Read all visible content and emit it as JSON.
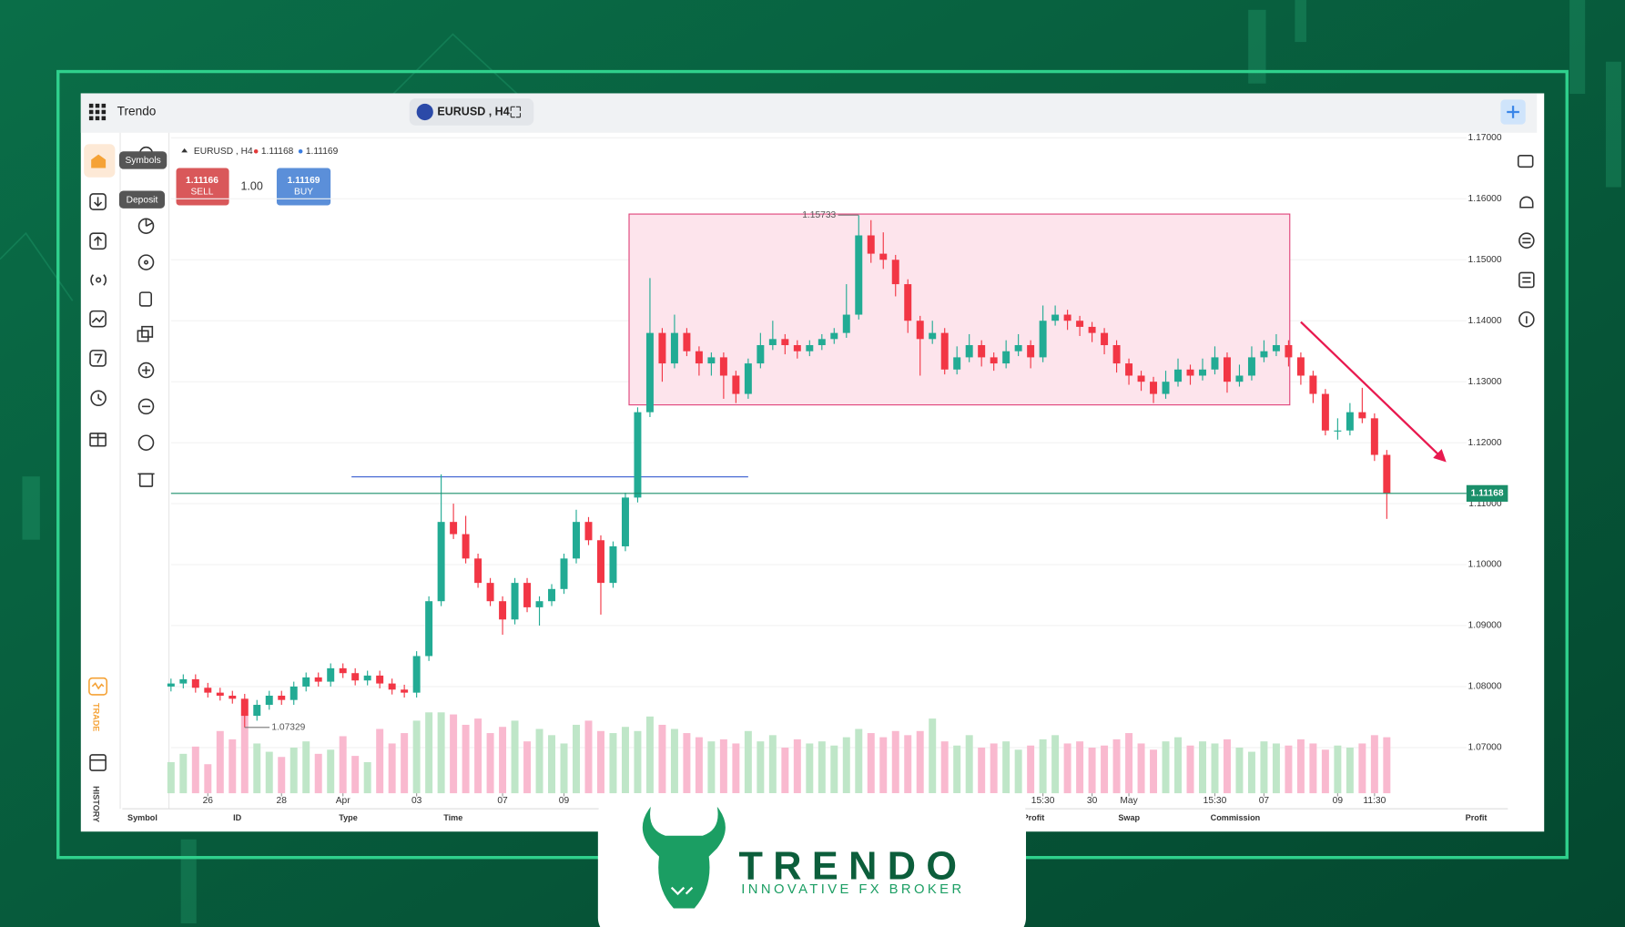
{
  "app": {
    "brand": "Trendo",
    "symbol": "EURUSD , H4"
  },
  "sidebar": {
    "tooltips": [
      "Symbols",
      "Deposit"
    ],
    "trade": "TRADE",
    "history": "HISTORY"
  },
  "chart_header": {
    "symbol": "EURUSD , H4",
    "bid": "1.11168",
    "ask": "1.11169"
  },
  "order": {
    "sell_price": "1.11166",
    "sell": "SELL",
    "lot": "1.00",
    "buy_price": "1.11169",
    "buy": "BUY"
  },
  "table_headers": [
    "Symbol",
    "ID",
    "Type",
    "Time",
    "Profit",
    "Swap",
    "Commission",
    "Profit"
  ],
  "logo": {
    "name": "TRENDO",
    "tagline": "INNOVATIVE FX BROKER"
  },
  "chart_data": {
    "type": "candlestick",
    "up_color": "#22ab94",
    "down_color": "#f23645",
    "volume_up_color": "#bfe6c8",
    "volume_down_color": "#f9b9cf",
    "ylim": [
      1.0625,
      1.1705
    ],
    "yticks": [
      {
        "value": 1.07,
        "label": "1.07000"
      },
      {
        "value": 1.08,
        "label": "1.08000"
      },
      {
        "value": 1.09,
        "label": "1.09000"
      },
      {
        "value": 1.1,
        "label": "1.10000"
      },
      {
        "value": 1.11,
        "label": "1.11000"
      },
      {
        "value": 1.12,
        "label": "1.12000"
      },
      {
        "value": 1.13,
        "label": "1.13000"
      },
      {
        "value": 1.14,
        "label": "1.14000"
      },
      {
        "value": 1.15,
        "label": "1.15000"
      },
      {
        "value": 1.16,
        "label": "1.16000"
      },
      {
        "value": 1.17,
        "label": "1.17000"
      }
    ],
    "xticks": [
      {
        "value": 3,
        "label": "26"
      },
      {
        "value": 9,
        "label": "28"
      },
      {
        "value": 14,
        "label": "Apr"
      },
      {
        "value": 20,
        "label": "03"
      },
      {
        "value": 27,
        "label": "07"
      },
      {
        "value": 32,
        "label": "09"
      },
      {
        "value": 71,
        "label": "15:30"
      },
      {
        "value": 75,
        "label": "30"
      },
      {
        "value": 78,
        "label": "May"
      },
      {
        "value": 85,
        "label": "15:30"
      },
      {
        "value": 89,
        "label": "07"
      },
      {
        "value": 95,
        "label": "09"
      },
      {
        "value": 98,
        "label": "11:30"
      }
    ],
    "last_price": 1.11168,
    "annotations": [
      {
        "x": 56,
        "value": 1.15733
      },
      {
        "x": 6,
        "value": 1.07329
      }
    ],
    "zone": {
      "x": [
        37.3,
        91.1
      ],
      "y": [
        1.1262,
        1.1575
      ]
    },
    "level": {
      "x": [
        14.7,
        47
      ],
      "y": 1.1144
    },
    "arrow": {
      "x": [
        92,
        103.7
      ],
      "y": [
        1.1398,
        1.1171
      ]
    },
    "ohlc": [
      [
        1.08,
        1.0813,
        1.0792,
        1.0805
      ],
      [
        1.0805,
        1.082,
        1.0797,
        1.0812
      ],
      [
        1.0812,
        1.082,
        1.079,
        1.0798
      ],
      [
        1.0798,
        1.0806,
        1.0782,
        1.079
      ],
      [
        1.079,
        1.0798,
        1.0777,
        1.0785
      ],
      [
        1.0785,
        1.0793,
        1.0772,
        1.078
      ],
      [
        1.078,
        1.0788,
        1.0733,
        1.0752
      ],
      [
        1.0752,
        1.0778,
        1.0744,
        1.077
      ],
      [
        1.077,
        1.0793,
        1.0762,
        1.0785
      ],
      [
        1.0785,
        1.0793,
        1.077,
        1.0778
      ],
      [
        1.0778,
        1.0808,
        1.077,
        1.08
      ],
      [
        1.08,
        1.0823,
        1.0792,
        1.0815
      ],
      [
        1.0815,
        1.0823,
        1.08,
        1.0808
      ],
      [
        1.0808,
        1.0838,
        1.08,
        1.083
      ],
      [
        1.083,
        1.0838,
        1.0814,
        1.0822
      ],
      [
        1.0822,
        1.083,
        1.0802,
        1.081
      ],
      [
        1.081,
        1.0826,
        1.0802,
        1.0818
      ],
      [
        1.0818,
        1.0826,
        1.0797,
        1.0805
      ],
      [
        1.0805,
        1.0813,
        1.0787,
        1.0795
      ],
      [
        1.0795,
        1.0803,
        1.0782,
        1.079
      ],
      [
        1.079,
        1.0858,
        1.0782,
        1.085
      ],
      [
        1.085,
        1.0948,
        1.0842,
        1.094
      ],
      [
        1.094,
        1.1148,
        1.0932,
        1.107
      ],
      [
        1.107,
        1.11,
        1.1042,
        1.105
      ],
      [
        1.105,
        1.108,
        1.1002,
        1.101
      ],
      [
        1.101,
        1.1018,
        1.0962,
        1.097
      ],
      [
        1.097,
        1.0978,
        1.0932,
        1.094
      ],
      [
        1.094,
        1.0948,
        1.0885,
        1.091
      ],
      [
        1.091,
        1.0978,
        1.0902,
        1.097
      ],
      [
        1.097,
        1.0978,
        1.0922,
        1.093
      ],
      [
        1.093,
        1.0948,
        1.09,
        1.094
      ],
      [
        1.094,
        1.0968,
        1.0932,
        1.096
      ],
      [
        1.096,
        1.1018,
        1.0952,
        1.101
      ],
      [
        1.101,
        1.109,
        1.1002,
        1.107
      ],
      [
        1.107,
        1.1078,
        1.1032,
        1.104
      ],
      [
        1.104,
        1.1048,
        1.0918,
        1.097
      ],
      [
        1.097,
        1.1038,
        1.0962,
        1.103
      ],
      [
        1.103,
        1.1118,
        1.1022,
        1.111
      ],
      [
        1.111,
        1.1258,
        1.1102,
        1.125
      ],
      [
        1.125,
        1.147,
        1.1242,
        1.138
      ],
      [
        1.138,
        1.1388,
        1.13,
        1.133
      ],
      [
        1.133,
        1.141,
        1.1322,
        1.138
      ],
      [
        1.138,
        1.1388,
        1.1342,
        1.135
      ],
      [
        1.135,
        1.1358,
        1.131,
        1.133
      ],
      [
        1.133,
        1.1348,
        1.131,
        1.134
      ],
      [
        1.134,
        1.1348,
        1.1272,
        1.131
      ],
      [
        1.131,
        1.1318,
        1.1265,
        1.128
      ],
      [
        1.128,
        1.1338,
        1.1272,
        1.133
      ],
      [
        1.133,
        1.138,
        1.1322,
        1.136
      ],
      [
        1.136,
        1.14,
        1.1352,
        1.137
      ],
      [
        1.137,
        1.1378,
        1.1345,
        1.136
      ],
      [
        1.136,
        1.1368,
        1.1338,
        1.135
      ],
      [
        1.135,
        1.1368,
        1.1342,
        1.136
      ],
      [
        1.136,
        1.1378,
        1.1352,
        1.137
      ],
      [
        1.137,
        1.1388,
        1.1362,
        1.138
      ],
      [
        1.138,
        1.146,
        1.1372,
        1.141
      ],
      [
        1.141,
        1.1573,
        1.1402,
        1.154
      ],
      [
        1.154,
        1.1565,
        1.1495,
        1.151
      ],
      [
        1.151,
        1.1545,
        1.1485,
        1.15
      ],
      [
        1.15,
        1.1508,
        1.144,
        1.146
      ],
      [
        1.146,
        1.1468,
        1.138,
        1.14
      ],
      [
        1.14,
        1.1408,
        1.131,
        1.137
      ],
      [
        1.137,
        1.14,
        1.1362,
        1.138
      ],
      [
        1.138,
        1.1388,
        1.1312,
        1.132
      ],
      [
        1.132,
        1.1358,
        1.1312,
        1.134
      ],
      [
        1.134,
        1.1378,
        1.1332,
        1.136
      ],
      [
        1.136,
        1.1368,
        1.1325,
        1.134
      ],
      [
        1.134,
        1.1348,
        1.1318,
        1.133
      ],
      [
        1.133,
        1.1368,
        1.1322,
        1.135
      ],
      [
        1.135,
        1.1378,
        1.1342,
        1.136
      ],
      [
        1.136,
        1.1368,
        1.1322,
        1.134
      ],
      [
        1.134,
        1.1425,
        1.1332,
        1.14
      ],
      [
        1.14,
        1.1425,
        1.1392,
        1.141
      ],
      [
        1.141,
        1.1418,
        1.1385,
        1.14
      ],
      [
        1.14,
        1.1408,
        1.1375,
        1.139
      ],
      [
        1.139,
        1.1398,
        1.1365,
        1.138
      ],
      [
        1.138,
        1.1388,
        1.1345,
        1.136
      ],
      [
        1.136,
        1.1368,
        1.1315,
        1.133
      ],
      [
        1.133,
        1.1338,
        1.1295,
        1.131
      ],
      [
        1.131,
        1.1318,
        1.1285,
        1.13
      ],
      [
        1.13,
        1.1308,
        1.1265,
        1.128
      ],
      [
        1.128,
        1.1318,
        1.1272,
        1.13
      ],
      [
        1.13,
        1.1338,
        1.1292,
        1.132
      ],
      [
        1.132,
        1.1328,
        1.1295,
        1.131
      ],
      [
        1.131,
        1.1338,
        1.1302,
        1.132
      ],
      [
        1.132,
        1.1358,
        1.1312,
        1.134
      ],
      [
        1.134,
        1.1348,
        1.1282,
        1.13
      ],
      [
        1.13,
        1.1328,
        1.1292,
        1.131
      ],
      [
        1.131,
        1.1358,
        1.1302,
        1.134
      ],
      [
        1.134,
        1.1368,
        1.1332,
        1.135
      ],
      [
        1.135,
        1.1378,
        1.1342,
        1.136
      ],
      [
        1.136,
        1.1368,
        1.1325,
        1.134
      ],
      [
        1.134,
        1.1348,
        1.1295,
        1.131
      ],
      [
        1.131,
        1.1318,
        1.1265,
        1.128
      ],
      [
        1.128,
        1.1288,
        1.1212,
        1.122
      ],
      [
        1.122,
        1.124,
        1.1205,
        1.122
      ],
      [
        1.122,
        1.1265,
        1.1212,
        1.125
      ],
      [
        1.125,
        1.129,
        1.1232,
        1.124
      ],
      [
        1.124,
        1.1248,
        1.117,
        1.118
      ],
      [
        1.118,
        1.1188,
        1.1075,
        1.1117
      ]
    ],
    "volume": [
      30,
      38,
      45,
      28,
      60,
      52,
      75,
      48,
      40,
      35,
      44,
      50,
      38,
      42,
      55,
      36,
      30,
      62,
      48,
      58,
      70,
      78,
      78,
      76,
      66,
      72,
      58,
      64,
      70,
      50,
      62,
      56,
      48,
      66,
      70,
      60,
      58,
      64,
      60,
      74,
      66,
      62,
      58,
      54,
      50,
      52,
      48,
      60,
      50,
      56,
      44,
      52,
      48,
      50,
      46,
      54,
      62,
      58,
      54,
      60,
      56,
      60,
      72,
      50,
      46,
      56,
      44,
      48,
      50,
      42,
      46,
      52,
      56,
      48,
      50,
      44,
      46,
      52,
      58,
      48,
      42,
      50,
      54,
      46,
      50,
      48,
      52,
      44,
      40,
      50,
      48,
      46,
      52,
      48,
      42,
      46,
      44,
      48,
      56,
      54
    ]
  }
}
